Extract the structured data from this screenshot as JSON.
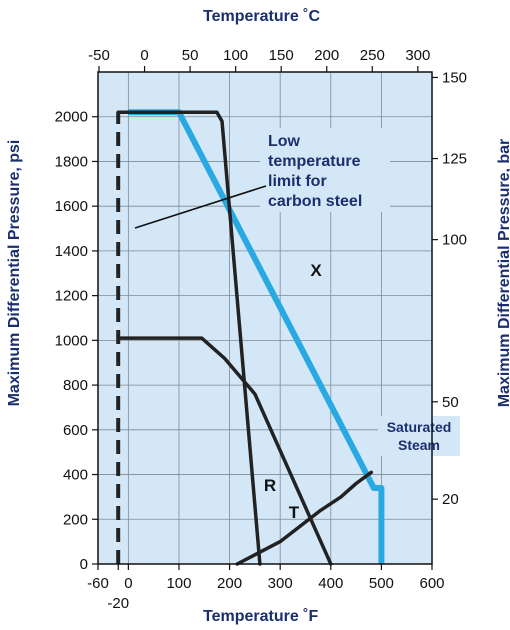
{
  "chart_data": {
    "type": "line",
    "title": "",
    "x_axis_bottom": {
      "label": "Temperature ˚F",
      "ticks": [
        "-60",
        "0",
        "100",
        "200",
        "300",
        "400",
        "500",
        "600"
      ],
      "extra_tick": "-20",
      "range": [
        -60,
        600
      ]
    },
    "x_axis_top": {
      "label": "Temperature ˚C",
      "ticks": [
        "-50",
        "0",
        "50",
        "100",
        "150",
        "200",
        "250",
        "300"
      ]
    },
    "y_axis_left": {
      "label": "Maximum Differential Pressure, psi",
      "ticks": [
        "0",
        "200",
        "400",
        "600",
        "800",
        "1000",
        "1200",
        "1400",
        "1600",
        "1800",
        "2000"
      ],
      "range": [
        0,
        2200
      ]
    },
    "y_axis_right": {
      "label": "Maximum Differential Pressure, bar",
      "ticks": [
        "20",
        "50",
        "100",
        "125",
        "150"
      ]
    },
    "grid": true,
    "series": [
      {
        "name": "X",
        "color": "#29a9e1",
        "points": [
          [
            0,
            2020
          ],
          [
            100,
            2020
          ],
          [
            485,
            340
          ],
          [
            500,
            340
          ],
          [
            500,
            0
          ]
        ]
      },
      {
        "name": "R",
        "color": "#222222",
        "points": [
          [
            -20,
            2020
          ],
          [
            175,
            2020
          ],
          [
            185,
            1980
          ],
          [
            260,
            0
          ]
        ]
      },
      {
        "name": "T",
        "color": "#222222",
        "points": [
          [
            -20,
            1010
          ],
          [
            145,
            1010
          ],
          [
            190,
            920
          ],
          [
            250,
            760
          ],
          [
            400,
            0
          ]
        ]
      },
      {
        "name": "Saturated Steam",
        "color": "#222222",
        "points": [
          [
            215,
            0
          ],
          [
            300,
            100
          ],
          [
            380,
            240
          ],
          [
            420,
            300
          ],
          [
            450,
            360
          ],
          [
            480,
            410
          ]
        ]
      },
      {
        "name": "low-temp-limit",
        "color": "#222222",
        "dashed": true,
        "points": [
          [
            -20,
            0
          ],
          [
            -20,
            2020
          ]
        ]
      }
    ],
    "annotations": {
      "low_temp": [
        "Low",
        "temperature",
        "limit for",
        "carbon steel"
      ],
      "x_label": "X",
      "r_label": "R",
      "t_label": "T",
      "steam": [
        "Saturated",
        "Steam"
      ]
    },
    "colors": {
      "plot_bg": "#d3e7f7",
      "accent": "#29a9e1",
      "axis_title": "#1b2f6f"
    }
  }
}
